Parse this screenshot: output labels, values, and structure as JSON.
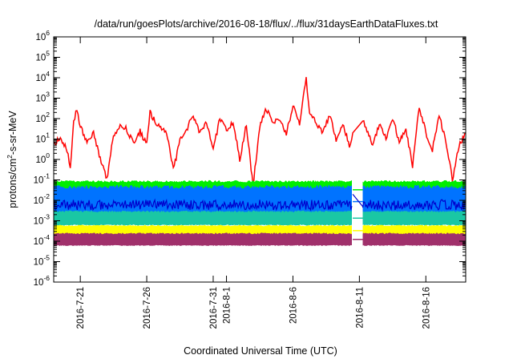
{
  "chart_data": {
    "type": "line",
    "title": "/data/run/goesPlots/archive/2016-08-18/flux/../flux/31daysEarthDataFluxes.txt",
    "xlabel": "Coordinated Universal Time (UTC)",
    "ylabel": {
      "text_a": "protons/cm",
      "exp": "2",
      "text_b": "-s-sr-MeV"
    },
    "xlim": [
      "2016-07-19",
      "2016-08-19"
    ],
    "ylim": [
      1e-06,
      1000000.0
    ],
    "yscale": "log",
    "grid": false,
    "legend": "none",
    "y_ticks": [
      {
        "base": "10",
        "exp": "-6",
        "value": 1e-06
      },
      {
        "base": "10",
        "exp": "-5",
        "value": 1e-05
      },
      {
        "base": "10",
        "exp": "-4",
        "value": 0.0001
      },
      {
        "base": "10",
        "exp": "-3",
        "value": 0.001
      },
      {
        "base": "10",
        "exp": "-2",
        "value": 0.01
      },
      {
        "base": "10",
        "exp": "-1",
        "value": 0.1
      },
      {
        "base": "10",
        "exp": "0",
        "value": 1
      },
      {
        "base": "10",
        "exp": "1",
        "value": 10
      },
      {
        "base": "10",
        "exp": "2",
        "value": 100
      },
      {
        "base": "10",
        "exp": "3",
        "value": 1000
      },
      {
        "base": "10",
        "exp": "4",
        "value": 10000
      },
      {
        "base": "10",
        "exp": "5",
        "value": 100000
      },
      {
        "base": "10",
        "exp": "6",
        "value": 1000000
      }
    ],
    "x_ticks": [
      {
        "label": "2016-7-21",
        "date": "2016-07-21"
      },
      {
        "label": "2016-7-26",
        "date": "2016-07-26"
      },
      {
        "label": "2016-7-31",
        "date": "2016-07-31"
      },
      {
        "label": "2016-8-1",
        "date": "2016-08-01"
      },
      {
        "label": "2016-8-6",
        "date": "2016-08-06"
      },
      {
        "label": "2016-8-11",
        "date": "2016-08-11"
      },
      {
        "label": "2016-8-16",
        "date": "2016-08-16"
      }
    ],
    "data_gap": [
      "2016-08-10T12:00",
      "2016-08-11T06:00"
    ],
    "series": [
      {
        "color": "#ff0000",
        "style": "line",
        "level_typical": 10,
        "log_spread": 0.9,
        "points": [
          [
            "2016-07-19T00:00",
            5
          ],
          [
            "2016-07-19T12:00",
            12
          ],
          [
            "2016-07-20T00:00",
            3
          ],
          [
            "2016-07-20T06:00",
            0.3
          ],
          [
            "2016-07-20T12:00",
            60
          ],
          [
            "2016-07-20T18:00",
            300
          ],
          [
            "2016-07-21T00:00",
            40
          ],
          [
            "2016-07-21T12:00",
            8
          ],
          [
            "2016-07-22T00:00",
            20
          ],
          [
            "2016-07-22T12:00",
            1
          ],
          [
            "2016-07-23T00:00",
            0.1
          ],
          [
            "2016-07-23T12:00",
            15
          ],
          [
            "2016-07-24T00:00",
            40
          ],
          [
            "2016-07-24T12:00",
            30
          ],
          [
            "2016-07-25T00:00",
            6
          ],
          [
            "2016-07-25T12:00",
            25
          ],
          [
            "2016-07-26T00:00",
            5
          ],
          [
            "2016-07-26T06:00",
            200
          ],
          [
            "2016-07-26T18:00",
            50
          ],
          [
            "2016-07-27T12:00",
            20
          ],
          [
            "2016-07-28T00:00",
            0.3
          ],
          [
            "2016-07-28T12:00",
            8
          ],
          [
            "2016-07-29T00:00",
            30
          ],
          [
            "2016-07-29T12:00",
            150
          ],
          [
            "2016-07-30T00:00",
            20
          ],
          [
            "2016-07-30T12:00",
            60
          ],
          [
            "2016-07-31T00:00",
            3
          ],
          [
            "2016-07-31T12:00",
            100
          ],
          [
            "2016-08-01T00:00",
            30
          ],
          [
            "2016-08-01T12:00",
            60
          ],
          [
            "2016-08-02T00:00",
            1
          ],
          [
            "2016-08-02T12:00",
            50
          ],
          [
            "2016-08-03T00:00",
            0.05
          ],
          [
            "2016-08-03T12:00",
            40
          ],
          [
            "2016-08-04T00:00",
            300
          ],
          [
            "2016-08-04T12:00",
            60
          ],
          [
            "2016-08-05T00:00",
            100
          ],
          [
            "2016-08-05T12:00",
            20
          ],
          [
            "2016-08-06T00:00",
            400
          ],
          [
            "2016-08-06T12:00",
            50
          ],
          [
            "2016-08-07T00:00",
            10000
          ],
          [
            "2016-08-07T06:00",
            200
          ],
          [
            "2016-08-07T18:00",
            60
          ],
          [
            "2016-08-08T06:00",
            20
          ],
          [
            "2016-08-08T18:00",
            150
          ],
          [
            "2016-08-09T06:00",
            10
          ],
          [
            "2016-08-09T18:00",
            60
          ],
          [
            "2016-08-10T06:00",
            5
          ],
          [
            "2016-08-10T12:00",
            20
          ],
          [
            "2016-08-11T06:00",
            100
          ],
          [
            "2016-08-11T12:00",
            40
          ],
          [
            "2016-08-12T00:00",
            5
          ],
          [
            "2016-08-12T12:00",
            60
          ],
          [
            "2016-08-13T00:00",
            10
          ],
          [
            "2016-08-13T12:00",
            100
          ],
          [
            "2016-08-14T00:00",
            8
          ],
          [
            "2016-08-14T12:00",
            30
          ],
          [
            "2016-08-15T00:00",
            0.5
          ],
          [
            "2016-08-15T12:00",
            400
          ],
          [
            "2016-08-16T00:00",
            20
          ],
          [
            "2016-08-16T12:00",
            3
          ],
          [
            "2016-08-17T00:00",
            150
          ],
          [
            "2016-08-17T12:00",
            8
          ],
          [
            "2016-08-18T00:00",
            0.1
          ],
          [
            "2016-08-18T12:00",
            5
          ],
          [
            "2016-08-19T00:00",
            20
          ]
        ]
      },
      {
        "color": "#00ee00",
        "style": "band",
        "upper": 0.09,
        "lower": 0.012
      },
      {
        "color": "#0073ff",
        "style": "band",
        "upper": 0.05,
        "lower": 0.0015
      },
      {
        "color": "#0000cc",
        "style": "line",
        "level_typical": 0.006,
        "log_spread": 0.25
      },
      {
        "color": "#1ac7a4",
        "style": "band",
        "upper": 0.003,
        "lower": 0.0006
      },
      {
        "color": "#ffff00",
        "style": "band",
        "upper": 0.0006,
        "lower": 0.00018
      },
      {
        "color": "#a0306b",
        "style": "band",
        "upper": 0.00025,
        "lower": 6e-05
      }
    ]
  }
}
